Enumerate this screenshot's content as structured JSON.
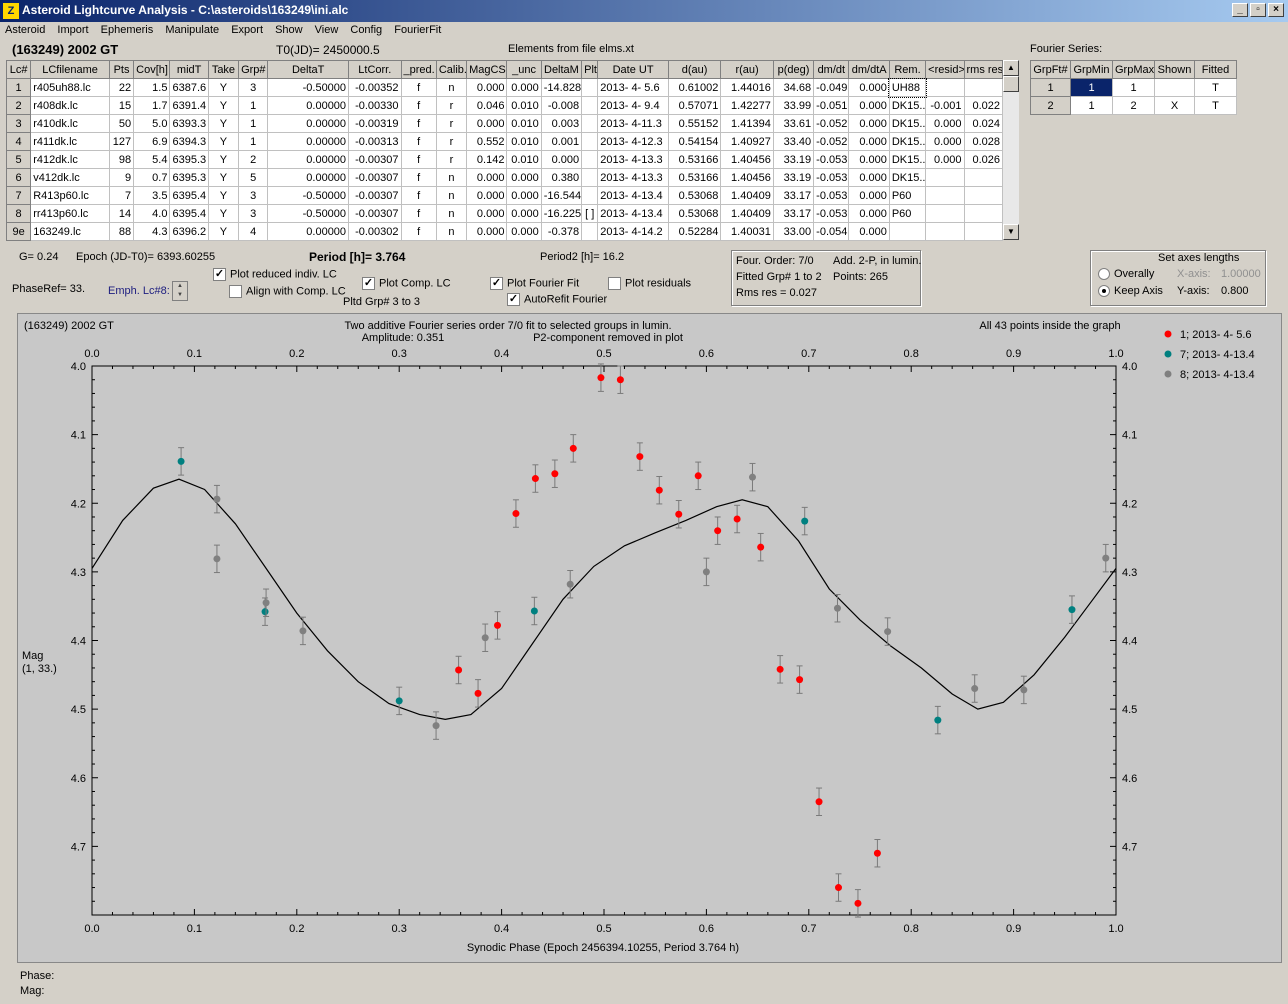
{
  "window": {
    "title": "Asteroid Lightcurve Analysis - C:\\asteroids\\163249\\ini.alc",
    "app_icon": "Z"
  },
  "menu": [
    "Asteroid",
    "Import",
    "Ephemeris",
    "Manipulate",
    "Export",
    "Show",
    "View",
    "Config",
    "FourierFit"
  ],
  "header": {
    "asteroid": "(163249) 2002 GT",
    "t0": "T0(JD)= 2450000.5",
    "elements": "Elements from file elms.xt"
  },
  "lc_table": {
    "columns": [
      "Lc#",
      "LCfilename",
      "Pts",
      "Cov[h]",
      "midT",
      "Take",
      "Grp#",
      "DeltaT",
      "LtCorr.",
      "_pred.",
      "Calib.",
      "MagCS",
      "_unc",
      "DeltaM",
      "Plt",
      "Date UT",
      "d(au)",
      "r(au)",
      "p(deg)",
      "dm/dt",
      "dm/dtA",
      "Rem.",
      "<resid>",
      "rms res"
    ],
    "rows": [
      [
        "1",
        "r405uh88.lc",
        "22",
        "1.5",
        "6387.6",
        "Y",
        "3",
        "-0.50000",
        "-0.00352",
        "f",
        "n",
        "0.000",
        "0.000",
        "-14.828",
        "",
        "2013- 4- 5.6",
        "0.61002",
        "1.44016",
        "34.68",
        "-0.049",
        "0.000",
        "UH88",
        "",
        ""
      ],
      [
        "2",
        "r408dk.lc",
        "15",
        "1.7",
        "6391.4",
        "Y",
        "1",
        "0.00000",
        "-0.00330",
        "f",
        "r",
        "0.046",
        "0.010",
        "-0.008",
        "",
        "2013- 4- 9.4",
        "0.57071",
        "1.42277",
        "33.99",
        "-0.051",
        "0.000",
        "DK15..",
        "-0.001",
        "0.022"
      ],
      [
        "3",
        "r410dk.lc",
        "50",
        "5.0",
        "6393.3",
        "Y",
        "1",
        "0.00000",
        "-0.00319",
        "f",
        "r",
        "0.000",
        "0.010",
        "0.003",
        "",
        "2013- 4-11.3",
        "0.55152",
        "1.41394",
        "33.61",
        "-0.052",
        "0.000",
        "DK15..",
        "0.000",
        "0.024"
      ],
      [
        "4",
        "r411dk.lc",
        "127",
        "6.9",
        "6394.3",
        "Y",
        "1",
        "0.00000",
        "-0.00313",
        "f",
        "r",
        "0.552",
        "0.010",
        "0.001",
        "",
        "2013- 4-12.3",
        "0.54154",
        "1.40927",
        "33.40",
        "-0.052",
        "0.000",
        "DK15..",
        "0.000",
        "0.028"
      ],
      [
        "5",
        "r412dk.lc",
        "98",
        "5.4",
        "6395.3",
        "Y",
        "2",
        "0.00000",
        "-0.00307",
        "f",
        "r",
        "0.142",
        "0.010",
        "0.000",
        "",
        "2013- 4-13.3",
        "0.53166",
        "1.40456",
        "33.19",
        "-0.053",
        "0.000",
        "DK15..",
        "0.000",
        "0.026"
      ],
      [
        "6",
        "v412dk.lc",
        "9",
        "0.7",
        "6395.3",
        "Y",
        "5",
        "0.00000",
        "-0.00307",
        "f",
        "n",
        "0.000",
        "0.000",
        "0.380",
        "",
        "2013- 4-13.3",
        "0.53166",
        "1.40456",
        "33.19",
        "-0.053",
        "0.000",
        "DK15..",
        "",
        ""
      ],
      [
        "7",
        "R413p60.lc",
        "7",
        "3.5",
        "6395.4",
        "Y",
        "3",
        "-0.50000",
        "-0.00307",
        "f",
        "n",
        "0.000",
        "0.000",
        "-16.544",
        "",
        "2013- 4-13.4",
        "0.53068",
        "1.40409",
        "33.17",
        "-0.053",
        "0.000",
        "P60",
        "",
        ""
      ],
      [
        "8",
        "rr413p60.lc",
        "14",
        "4.0",
        "6395.4",
        "Y",
        "3",
        "-0.50000",
        "-0.00307",
        "f",
        "n",
        "0.000",
        "0.000",
        "-16.225",
        "[ ]",
        "2013- 4-13.4",
        "0.53068",
        "1.40409",
        "33.17",
        "-0.053",
        "0.000",
        "P60",
        "",
        ""
      ],
      [
        "9e",
        "163249.lc",
        "88",
        "4.3",
        "6396.2",
        "Y",
        "4",
        "0.00000",
        "-0.00302",
        "f",
        "n",
        "0.000",
        "0.000",
        "-0.378",
        "",
        "2013- 4-14.2",
        "0.52284",
        "1.40031",
        "33.00",
        "-0.054",
        "0.000",
        "",
        "",
        ""
      ]
    ]
  },
  "fourier_series": {
    "label": "Fourier Series:",
    "columns": [
      "GrpFt#",
      "GrpMin",
      "GrpMax",
      "Shown",
      "Fitted"
    ],
    "rows": [
      [
        "1",
        "1",
        "1",
        "",
        "T"
      ],
      [
        "2",
        "1",
        "2",
        "X",
        "T"
      ]
    ]
  },
  "params": {
    "g": "G= 0.24",
    "epoch": "Epoch (JD-T0)= 6393.60255",
    "period": "Period [h]= 3.764",
    "period2": "Period2 [h]= 16.2",
    "phaseref": "PhaseRef= 33.",
    "emph": "Emph. Lc#8:"
  },
  "options": {
    "plot_reduced": "Plot reduced indiv. LC",
    "align_comp": "Align with Comp. LC",
    "plot_comp": "Plot Comp. LC",
    "pltd_grp": "Pltd Grp#  3  to   3",
    "plot_fourier": "Plot Fourier Fit",
    "autorefit": "AutoRefit Fourier",
    "plot_residuals": "Plot residuals"
  },
  "fit_info": {
    "order": "Four. Order:  7/0",
    "add": "Add. 2-P, in lumin.",
    "fitted": "Fitted Grp# 1 to 2",
    "points": "Points: 265",
    "rms": "Rms res     = 0.027"
  },
  "axes_panel": {
    "title": "Set axes lengths",
    "overall": "Overally",
    "keep": "Keep Axis",
    "xaxis_label": "X-axis:",
    "xaxis_val": "1.00000",
    "yaxis_label": "Y-axis:",
    "yaxis_val": "0.800"
  },
  "status": {
    "phase": "Phase:",
    "mag": "Mag:"
  },
  "colors": {
    "red": "#ff0000",
    "teal": "#008080",
    "gray": "#808080",
    "plot_bg": "#c8c8c8"
  },
  "chart_data": {
    "type": "scatter",
    "title_left": "(163249) 2002 GT",
    "title": "Two additive Fourier series order 7/0 fit to selected groups in lumin.",
    "subtitle_left": "Amplitude: 0.351",
    "subtitle_right": "P2-component removed in plot",
    "title_right": "All 43 points inside the graph",
    "xlabel": "Synodic Phase (Epoch 2456394.10255, Period 3.764 h)",
    "ylabel": "Mag",
    "ylabel2": "(1, 33.)",
    "xlim": [
      0,
      1
    ],
    "ylim": [
      4.0,
      4.8
    ],
    "xticks": [
      "0.0",
      "0.1",
      "0.2",
      "0.3",
      "0.4",
      "0.5",
      "0.6",
      "0.7",
      "0.8",
      "0.9",
      "1.0"
    ],
    "yticks": [
      "4.0",
      "4.1",
      "4.2",
      "4.3",
      "4.4",
      "4.5",
      "4.6",
      "4.7"
    ],
    "series": [
      {
        "name": "1; 2013- 4- 5.6",
        "color": "#ff0000",
        "points": [
          [
            0.358,
            4.443
          ],
          [
            0.377,
            4.477
          ],
          [
            0.396,
            4.378
          ],
          [
            0.414,
            4.215
          ],
          [
            0.433,
            4.164
          ],
          [
            0.452,
            4.157
          ],
          [
            0.47,
            4.12
          ],
          [
            0.497,
            4.017
          ],
          [
            0.516,
            4.02
          ],
          [
            0.535,
            4.132
          ],
          [
            0.554,
            4.181
          ],
          [
            0.573,
            4.216
          ],
          [
            0.592,
            4.16
          ],
          [
            0.611,
            4.24
          ],
          [
            0.63,
            4.223
          ],
          [
            0.653,
            4.264
          ],
          [
            0.672,
            4.442
          ],
          [
            0.691,
            4.457
          ],
          [
            0.71,
            4.635
          ],
          [
            0.729,
            4.76
          ],
          [
            0.748,
            4.783
          ],
          [
            0.767,
            4.71
          ]
        ],
        "err": 0.02
      },
      {
        "name": "7; 2013- 4-13.4",
        "color": "#008080",
        "points": [
          [
            0.087,
            4.139
          ],
          [
            0.169,
            4.358
          ],
          [
            0.3,
            4.488
          ],
          [
            0.432,
            4.357
          ],
          [
            0.696,
            4.226
          ],
          [
            0.826,
            4.516
          ],
          [
            0.957,
            4.355
          ]
        ],
        "err": 0.02
      },
      {
        "name": "8; 2013- 4-13.4",
        "color": "#808080",
        "points": [
          [
            0.122,
            4.194
          ],
          [
            0.122,
            4.281
          ],
          [
            0.17,
            4.345
          ],
          [
            0.206,
            4.386
          ],
          [
            0.336,
            4.524
          ],
          [
            0.384,
            4.396
          ],
          [
            0.467,
            4.318
          ],
          [
            0.6,
            4.3
          ],
          [
            0.645,
            4.162
          ],
          [
            0.728,
            4.353
          ],
          [
            0.777,
            4.387
          ],
          [
            0.862,
            4.47
          ],
          [
            0.91,
            4.472
          ],
          [
            0.99,
            4.28
          ]
        ],
        "err": 0.02
      }
    ],
    "fit_curve": [
      [
        0,
        4.295
      ],
      [
        0.03,
        4.225
      ],
      [
        0.06,
        4.178
      ],
      [
        0.085,
        4.165
      ],
      [
        0.11,
        4.18
      ],
      [
        0.14,
        4.23
      ],
      [
        0.17,
        4.295
      ],
      [
        0.2,
        4.36
      ],
      [
        0.23,
        4.415
      ],
      [
        0.26,
        4.46
      ],
      [
        0.29,
        4.492
      ],
      [
        0.32,
        4.508
      ],
      [
        0.345,
        4.515
      ],
      [
        0.37,
        4.508
      ],
      [
        0.4,
        4.47
      ],
      [
        0.43,
        4.405
      ],
      [
        0.46,
        4.34
      ],
      [
        0.49,
        4.292
      ],
      [
        0.52,
        4.262
      ],
      [
        0.55,
        4.243
      ],
      [
        0.58,
        4.225
      ],
      [
        0.61,
        4.205
      ],
      [
        0.635,
        4.195
      ],
      [
        0.66,
        4.205
      ],
      [
        0.69,
        4.255
      ],
      [
        0.72,
        4.325
      ],
      [
        0.75,
        4.37
      ],
      [
        0.78,
        4.408
      ],
      [
        0.81,
        4.44
      ],
      [
        0.84,
        4.478
      ],
      [
        0.865,
        4.5
      ],
      [
        0.89,
        4.49
      ],
      [
        0.92,
        4.45
      ],
      [
        0.95,
        4.395
      ],
      [
        0.975,
        4.345
      ],
      [
        1.0,
        4.295
      ]
    ]
  }
}
